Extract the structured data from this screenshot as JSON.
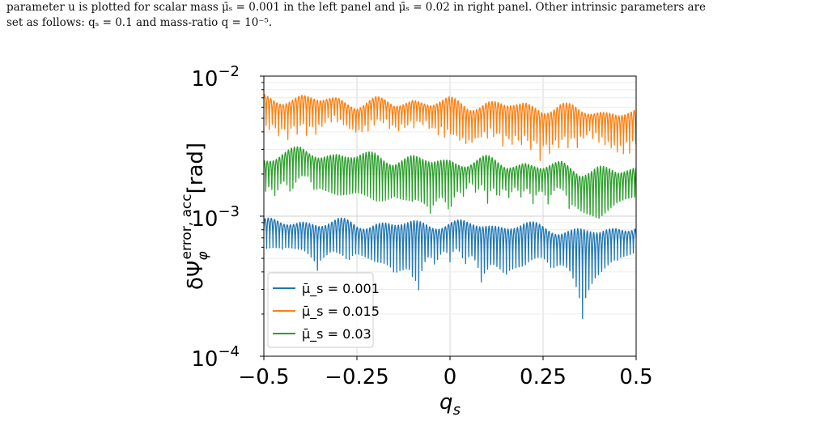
{
  "caption": {
    "line1": "parameter u is plotted for scalar mass μ̄ₛ = 0.001 in the left panel and μ̄ₛ = 0.02 in right panel. Other intrinsic parameters are",
    "line2": "set as follows: qₛ = 0.1 and mass-ratio q = 10⁻⁵."
  },
  "chart_data": {
    "type": "line",
    "xlabel": "q_s",
    "ylabel": "δΨ_φ^{error, acc} [rad]",
    "xlim": [
      -0.5,
      0.5
    ],
    "ylim": [
      0.0001,
      0.01
    ],
    "yscale": "log",
    "grid": true,
    "legend_placement": "lower-left",
    "x_ticks": [
      -0.5,
      -0.25,
      0,
      0.25,
      0.5
    ],
    "x_tick_labels": [
      "−0.5",
      "−0.25",
      "0",
      "0.25",
      "0.5"
    ],
    "y_ticks": [
      0.0001,
      0.001,
      0.01
    ],
    "y_tick_labels": [
      {
        "base": "10",
        "exp": "−4"
      },
      {
        "base": "10",
        "exp": "−3"
      },
      {
        "base": "10",
        "exp": "−2"
      }
    ],
    "series": [
      {
        "name": "μ̄_s = 0.001",
        "color": "#1f77b4",
        "x": [
          -0.5,
          -0.45,
          -0.4,
          -0.35,
          -0.3,
          -0.25,
          -0.2,
          -0.15,
          -0.1,
          -0.05,
          0,
          0.05,
          0.1,
          0.15,
          0.2,
          0.25,
          0.3,
          0.35,
          0.4,
          0.45,
          0.5
        ],
        "envelope": [
          0.00091,
          0.00087,
          0.00092,
          0.00088,
          0.0009,
          0.00086,
          0.0009,
          0.00084,
          0.0009,
          0.00087,
          0.00089,
          0.00085,
          0.00088,
          0.00083,
          0.00086,
          0.00082,
          0.0008,
          0.00078,
          0.00075,
          0.00082,
          0.00086
        ],
        "minima": [
          0.00033,
          0.00039,
          0.00035,
          0.0004,
          0.00036,
          0.00038,
          0.00029,
          0.00034,
          0.00021,
          0.00036,
          0.00028,
          0.00035,
          0.00027,
          0.00033,
          0.00026,
          0.00034,
          0.00031,
          0.00017,
          0.00018,
          0.00029,
          0.00034
        ]
      },
      {
        "name": "μ̄_s = 0.015",
        "color": "#ff7f0e",
        "x": [
          -0.5,
          -0.45,
          -0.4,
          -0.35,
          -0.3,
          -0.25,
          -0.2,
          -0.15,
          -0.1,
          -0.05,
          0,
          0.05,
          0.1,
          0.15,
          0.2,
          0.25,
          0.3,
          0.35,
          0.4,
          0.45,
          0.5
        ],
        "envelope": [
          0.0069,
          0.0068,
          0.0071,
          0.0066,
          0.0068,
          0.0063,
          0.0066,
          0.0062,
          0.0068,
          0.0063,
          0.0066,
          0.0061,
          0.0065,
          0.006,
          0.0063,
          0.0058,
          0.0061,
          0.0055,
          0.0057,
          0.0053,
          0.0055
        ],
        "minima": [
          0.0033,
          0.0031,
          0.0034,
          0.0028,
          0.0032,
          0.0027,
          0.003,
          0.0025,
          0.0029,
          0.0026,
          0.0028,
          0.0025,
          0.0027,
          0.0024,
          0.0025,
          0.0023,
          0.0025,
          0.0022,
          0.0024,
          0.0022,
          0.0025
        ]
      },
      {
        "name": "μ̄_s = 0.03",
        "color": "#2ca02c",
        "x": [
          -0.5,
          -0.45,
          -0.4,
          -0.35,
          -0.3,
          -0.25,
          -0.2,
          -0.15,
          -0.1,
          -0.05,
          0,
          0.05,
          0.1,
          0.15,
          0.2,
          0.25,
          0.3,
          0.35,
          0.4,
          0.45,
          0.5
        ],
        "envelope": [
          0.0026,
          0.0028,
          0.0029,
          0.0027,
          0.0028,
          0.0026,
          0.0027,
          0.0025,
          0.0026,
          0.0024,
          0.0025,
          0.0024,
          0.0025,
          0.0023,
          0.0024,
          0.0022,
          0.0023,
          0.0021,
          0.0022,
          0.002,
          0.0022
        ],
        "minima": [
          0.0011,
          0.0012,
          0.00095,
          0.0011,
          0.00088,
          0.001,
          0.00082,
          0.00098,
          0.00062,
          0.00094,
          0.0008,
          0.00095,
          0.00079,
          0.00092,
          0.0007,
          0.00089,
          0.00076,
          0.00063,
          0.00051,
          0.0008,
          0.00085
        ]
      }
    ]
  }
}
